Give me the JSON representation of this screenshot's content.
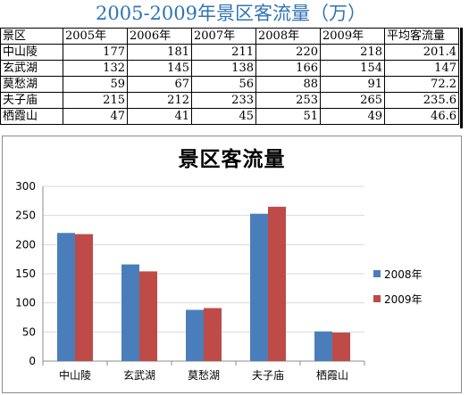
{
  "sheet": {
    "title": "2005-2009年景区客流量（万）",
    "headers": [
      "景区",
      "2005年",
      "2006年",
      "2007年",
      "2008年",
      "2009年",
      "平均客流量"
    ],
    "rows": [
      [
        "中山陵",
        "177",
        "181",
        "211",
        "220",
        "218",
        "201.4"
      ],
      [
        "玄武湖",
        "132",
        "145",
        "138",
        "166",
        "154",
        "147"
      ],
      [
        "莫愁湖",
        "59",
        "67",
        "56",
        "88",
        "91",
        "72.2"
      ],
      [
        "夫子庙",
        "215",
        "212",
        "233",
        "253",
        "265",
        "235.6"
      ],
      [
        "栖霞山",
        "47",
        "41",
        "45",
        "51",
        "49",
        "46.6"
      ]
    ]
  },
  "colors": {
    "title": "#2f74b5",
    "series_2008": "#4a7ebb",
    "series_2009": "#be4b48"
  },
  "chart_data": {
    "type": "bar",
    "title": "景区客流量",
    "categories": [
      "中山陵",
      "玄武湖",
      "莫愁湖",
      "夫子庙",
      "栖霞山"
    ],
    "series": [
      {
        "name": "2008年",
        "values": [
          220,
          166,
          88,
          253,
          51
        ]
      },
      {
        "name": "2009年",
        "values": [
          218,
          154,
          91,
          265,
          49
        ]
      }
    ],
    "ylim": [
      0,
      300
    ],
    "yticks": [
      0,
      50,
      100,
      150,
      200,
      250,
      300
    ],
    "grid": true,
    "legend": "right"
  }
}
